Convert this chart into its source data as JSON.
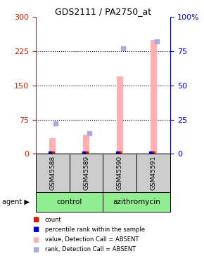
{
  "title": "GDS2111 / PA2750_at",
  "samples": [
    "GSM45588",
    "GSM45589",
    "GSM45590",
    "GSM45591"
  ],
  "left_ylim": [
    0,
    300
  ],
  "right_ylim": [
    0,
    100
  ],
  "left_yticks": [
    0,
    75,
    150,
    225,
    300
  ],
  "right_yticks": [
    0,
    25,
    50,
    75,
    100
  ],
  "right_yticklabels": [
    "0",
    "25",
    "50",
    "75",
    "100%"
  ],
  "left_tick_color": "#cc2200",
  "right_tick_color": "#0000cc",
  "pink_bar_values": [
    35,
    42,
    170,
    250
  ],
  "blue_rank_values": [
    22,
    15,
    77,
    82
  ],
  "pink_color": "#ffb0b0",
  "blue_rank_color": "#aaaadd",
  "red_count_color": "#cc2200",
  "blue_perc_color": "#0000cc",
  "dotted_line_color": "#000000",
  "legend_items": [
    {
      "label": "count",
      "color": "#cc2200"
    },
    {
      "label": "percentile rank within the sample",
      "color": "#0000cc"
    },
    {
      "label": "value, Detection Call = ABSENT",
      "color": "#ffb0b0"
    },
    {
      "label": "rank, Detection Call = ABSENT",
      "color": "#aaaadd"
    }
  ],
  "bg_plot": "#ffffff",
  "bg_fig": "#ffffff",
  "control_color": "#90ee90",
  "azithromycin_color": "#90ee90",
  "sample_bg_color": "#cccccc"
}
